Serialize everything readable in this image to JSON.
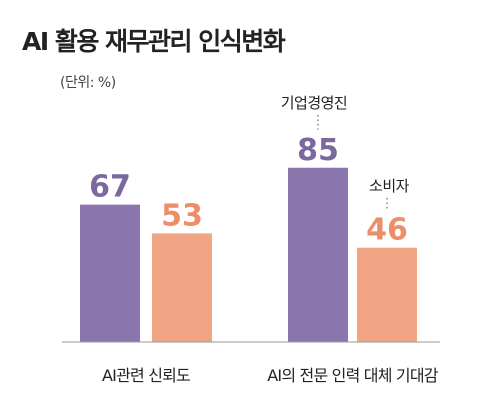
{
  "chart_data": {
    "type": "bar",
    "title": "AI 활용 재무관리 인식변화",
    "unit_label": "(단위: %)",
    "categories": [
      "AI관련 신뢰도",
      "AI의 전문 인력 대체 기대감"
    ],
    "series": [
      {
        "name": "기업경영진",
        "values": [
          67,
          85
        ]
      },
      {
        "name": "소비자",
        "values": [
          53,
          46
        ]
      }
    ],
    "ylim": [
      0,
      100
    ],
    "grid": false,
    "legend": "annotations above second category bars",
    "colors": {
      "series_1": "#8a76ad",
      "series_2": "#f2a584",
      "value_1": "#7b689e",
      "value_2": "#ec8e68",
      "axis": "#999999"
    }
  }
}
